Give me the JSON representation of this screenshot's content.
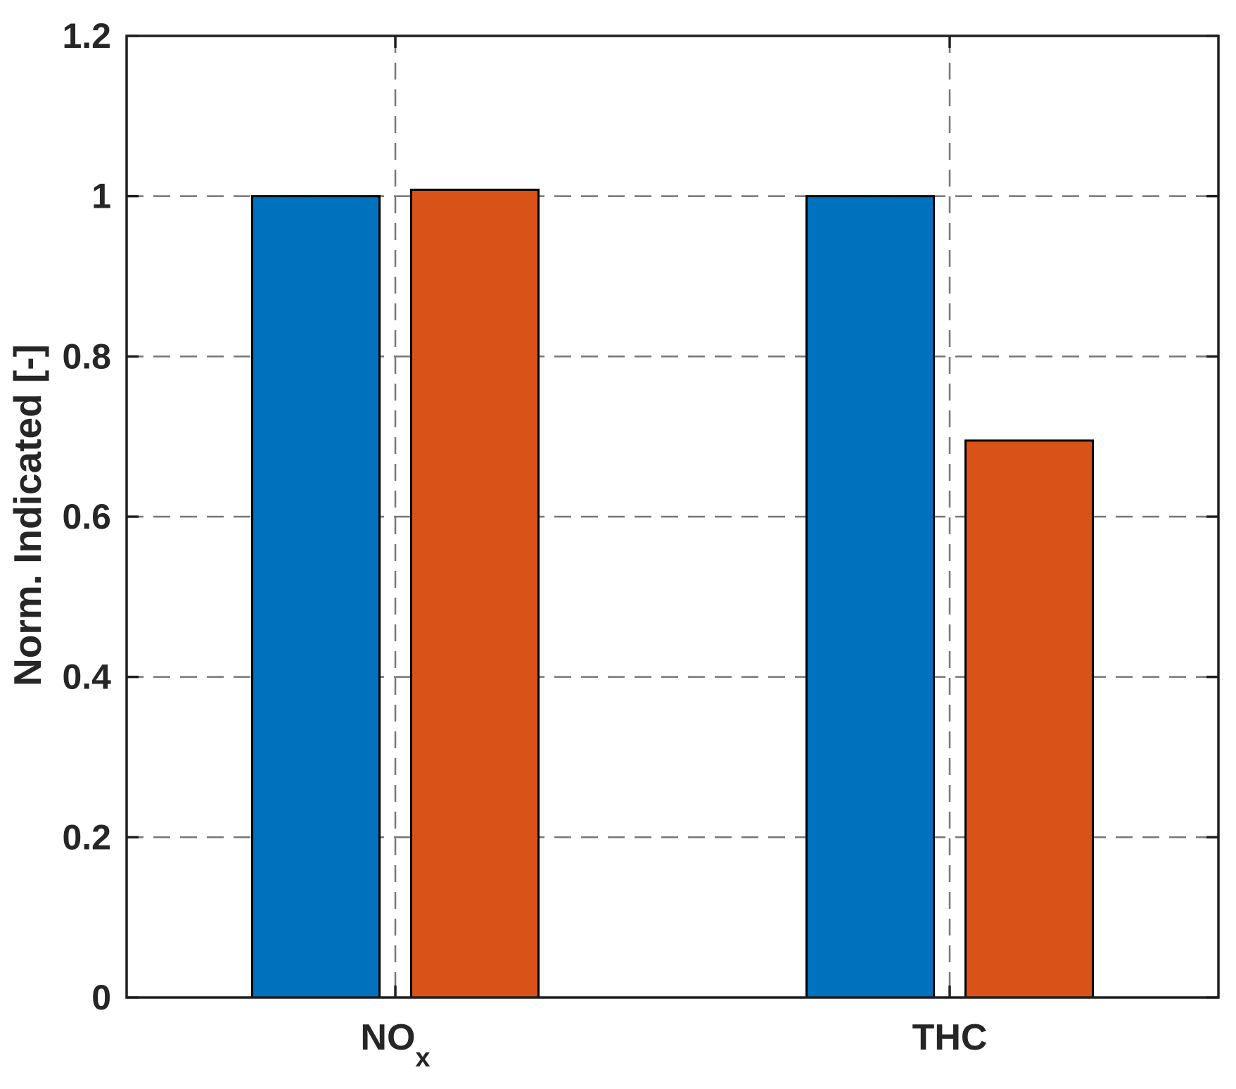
{
  "figure": {
    "title": "",
    "background": "#FFFFFF"
  },
  "chart_data": {
    "type": "bar",
    "title": "",
    "xlabel": "",
    "ylabel": "Norm. Indicated [-]",
    "categories": [
      {
        "label": "NO",
        "subscript": "x"
      },
      {
        "label": "THC",
        "subscript": ""
      }
    ],
    "series": [
      {
        "name": "series-1-blue",
        "color": "#0072BD",
        "values": [
          1.0,
          1.0
        ]
      },
      {
        "name": "series-2-orange",
        "color": "#D95319",
        "values": [
          1.008,
          0.695
        ]
      }
    ],
    "ylim": [
      0,
      1.2
    ],
    "yticks": [
      0,
      0.2,
      0.4,
      0.6,
      0.8,
      1,
      1.2
    ],
    "ytick_labels": [
      "0",
      "0.2",
      "0.4",
      "0.6",
      "0.8",
      "1",
      "1.2"
    ],
    "grid": {
      "horizontal": true,
      "vertical": true,
      "style": "dashed",
      "color": "#767676"
    },
    "legend": {
      "visible": false
    },
    "bar_edge_color": "#000000",
    "axis_color": "#1f1f1f",
    "tick_label_color": "#262626"
  }
}
